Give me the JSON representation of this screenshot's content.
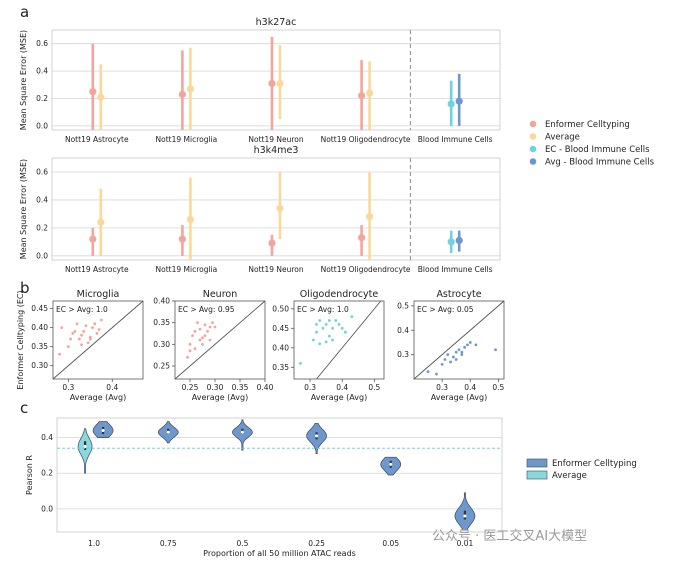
{
  "panel_labels": [
    "a",
    "b",
    "c"
  ],
  "legend_a": [
    {
      "label": "Enformer Celltyping",
      "color": "#f2a59c"
    },
    {
      "label": "Average",
      "color": "#fad89a"
    },
    {
      "label": "EC - Blood Immune Cells",
      "color": "#6fd3dc"
    },
    {
      "label": "Avg - Blood Immune Cells",
      "color": "#6e98cc"
    }
  ],
  "legend_c": [
    {
      "label": "Enformer Celltyping",
      "color": "#6e98cc"
    },
    {
      "label": "Average",
      "color": "#8ad8dc"
    }
  ],
  "watermark": "公众号 · 医工交叉AI大模型",
  "chart_data": [
    {
      "id": "a_top",
      "type": "scatter",
      "subtype": "point-range",
      "title": "h3k27ac",
      "ylabel": "Mean Square Error (MSE)",
      "ylim": [
        -0.03,
        0.7
      ],
      "yticks": [
        "0.0",
        "0.2",
        "0.4",
        "0.6"
      ],
      "categories": [
        "Nott19 Astrocyte",
        "Nott19 Microglia",
        "Nott19 Neuron",
        "Nott19 Oligodendrocyte",
        "Blood Immune Cells"
      ],
      "series": [
        {
          "name": "Enformer Celltyping",
          "color": "#f2a59c",
          "categories": [
            0,
            1,
            2,
            3
          ],
          "center": [
            0.25,
            0.23,
            0.31,
            0.22
          ],
          "low": [
            -0.03,
            -0.03,
            -0.03,
            -0.03
          ],
          "high": [
            0.6,
            0.55,
            0.65,
            0.48
          ]
        },
        {
          "name": "Average",
          "color": "#fad89a",
          "categories": [
            0,
            1,
            2,
            3
          ],
          "center": [
            0.21,
            0.27,
            0.31,
            0.24
          ],
          "low": [
            -0.03,
            -0.03,
            0.05,
            -0.03
          ],
          "high": [
            0.45,
            0.57,
            0.59,
            0.47
          ]
        },
        {
          "name": "EC - Blood Immune Cells",
          "color": "#6fd3dc",
          "categories": [
            4
          ],
          "center": [
            0.16
          ],
          "low": [
            0.0
          ],
          "high": [
            0.33
          ]
        },
        {
          "name": "Avg - Blood Immune Cells",
          "color": "#6e98cc",
          "categories": [
            4
          ],
          "center": [
            0.18
          ],
          "low": [
            0.0
          ],
          "high": [
            0.38
          ]
        }
      ],
      "divider_between": [
        3,
        4
      ],
      "grid": true
    },
    {
      "id": "a_bottom",
      "type": "scatter",
      "subtype": "point-range",
      "title": "h3k4me3",
      "ylabel": "Mean Square Error (MSE)",
      "ylim": [
        -0.03,
        0.7
      ],
      "yticks": [
        "0.0",
        "0.2",
        "0.4",
        "0.6"
      ],
      "categories": [
        "Nott19 Astrocyte",
        "Nott19 Microglia",
        "Nott19 Neuron",
        "Nott19 Oligodendrocyte",
        "Blood Immune Cells"
      ],
      "series": [
        {
          "name": "Enformer Celltyping",
          "color": "#f2a59c",
          "categories": [
            0,
            1,
            2,
            3
          ],
          "center": [
            0.12,
            0.12,
            0.09,
            0.13
          ],
          "low": [
            0.0,
            0.0,
            0.0,
            0.0
          ],
          "high": [
            0.2,
            0.22,
            0.15,
            0.22
          ]
        },
        {
          "name": "Average",
          "color": "#fad89a",
          "categories": [
            0,
            1,
            2,
            3
          ],
          "center": [
            0.24,
            0.26,
            0.34,
            0.28
          ],
          "low": [
            0.0,
            -0.03,
            0.12,
            -0.03
          ],
          "high": [
            0.48,
            0.56,
            0.6,
            0.6
          ]
        },
        {
          "name": "EC - Blood Immune Cells",
          "color": "#6fd3dc",
          "categories": [
            4
          ],
          "center": [
            0.1
          ],
          "low": [
            0.02
          ],
          "high": [
            0.18
          ]
        },
        {
          "name": "Avg - Blood Immune Cells",
          "color": "#6e98cc",
          "categories": [
            4
          ],
          "center": [
            0.11
          ],
          "low": [
            0.03
          ],
          "high": [
            0.18
          ]
        }
      ],
      "divider_between": [
        3,
        4
      ],
      "grid": true
    },
    {
      "id": "b_microglia",
      "type": "scatter",
      "title": "Microglia",
      "annotation": "EC > Avg: 1.0",
      "xlabel": "Average (Avg)",
      "ylabel": "Enformer Celltyping (EC)",
      "xlim": [
        0.265,
        0.47
      ],
      "ylim": [
        0.265,
        0.47
      ],
      "xticks": [
        0.3,
        0.4
      ],
      "xticklabels": [
        "0.3",
        "0.4"
      ],
      "yticks": [
        0.3,
        0.35,
        0.4,
        0.45
      ],
      "yticklabels": [
        "0.30",
        "0.35",
        "0.40",
        "0.45"
      ],
      "color": "#f2a59c",
      "x": [
        0.285,
        0.3,
        0.305,
        0.31,
        0.315,
        0.32,
        0.325,
        0.33,
        0.335,
        0.34,
        0.345,
        0.35,
        0.355,
        0.36,
        0.365,
        0.37,
        0.375,
        0.28,
        0.33,
        0.35
      ],
      "y": [
        0.4,
        0.35,
        0.37,
        0.385,
        0.39,
        0.41,
        0.37,
        0.38,
        0.39,
        0.405,
        0.36,
        0.375,
        0.4,
        0.41,
        0.385,
        0.395,
        0.42,
        0.33,
        0.355,
        0.37
      ],
      "diagonal": true
    },
    {
      "id": "b_neuron",
      "type": "scatter",
      "title": "Neuron",
      "annotation": "EC > Avg: 0.95",
      "xlabel": "Average (Avg)",
      "ylabel": "",
      "xlim": [
        0.22,
        0.4
      ],
      "ylim": [
        0.22,
        0.4
      ],
      "xticks": [
        0.25,
        0.3,
        0.35,
        0.4
      ],
      "xticklabels": [
        "0.25",
        "0.30",
        "0.35",
        "0.40"
      ],
      "yticks": [
        0.25,
        0.3,
        0.35,
        0.4
      ],
      "yticklabels": [
        "0.25",
        "0.30",
        "0.35",
        "0.40"
      ],
      "color": "#f2a59c",
      "x": [
        0.245,
        0.25,
        0.255,
        0.26,
        0.265,
        0.27,
        0.275,
        0.28,
        0.285,
        0.29,
        0.295,
        0.3,
        0.26,
        0.27,
        0.28,
        0.29,
        0.25,
        0.275
      ],
      "y": [
        0.27,
        0.3,
        0.32,
        0.33,
        0.35,
        0.31,
        0.3,
        0.32,
        0.33,
        0.34,
        0.35,
        0.34,
        0.29,
        0.335,
        0.345,
        0.31,
        0.285,
        0.315
      ],
      "diagonal": true
    },
    {
      "id": "b_oligodendrocyte",
      "type": "scatter",
      "title": "Oligodendrocyte",
      "annotation": "EC > Avg: 1.0",
      "xlabel": "Average (Avg)",
      "ylabel": "",
      "xlim": [
        0.25,
        0.53
      ],
      "ylim": [
        0.32,
        0.52
      ],
      "xticks": [
        0.3,
        0.4,
        0.5
      ],
      "xticklabels": [
        "0.3",
        "0.4",
        "0.5"
      ],
      "yticks": [
        0.35,
        0.4,
        0.45,
        0.5
      ],
      "yticklabels": [
        "0.35",
        "0.40",
        "0.45",
        "0.50"
      ],
      "color": "#6fd3dc",
      "x": [
        0.27,
        0.31,
        0.32,
        0.33,
        0.34,
        0.35,
        0.36,
        0.37,
        0.38,
        0.39,
        0.4,
        0.41,
        0.33,
        0.35,
        0.37,
        0.43,
        0.32,
        0.36
      ],
      "y": [
        0.36,
        0.42,
        0.44,
        0.47,
        0.45,
        0.46,
        0.43,
        0.42,
        0.47,
        0.46,
        0.45,
        0.44,
        0.41,
        0.415,
        0.45,
        0.48,
        0.46,
        0.47
      ],
      "diagonal": true
    },
    {
      "id": "b_astrocyte",
      "type": "scatter",
      "title": "Astrocyte",
      "annotation": "EC > Avg: 0.05",
      "xlabel": "Average (Avg)",
      "ylabel": "",
      "xlim": [
        0.2,
        0.52
      ],
      "ylim": [
        0.2,
        0.52
      ],
      "xticks": [
        0.3,
        0.4,
        0.5
      ],
      "xticklabels": [
        "0.3",
        "0.4",
        "0.5"
      ],
      "yticks": [
        0.3,
        0.4,
        0.5
      ],
      "yticklabels": [
        "0.3",
        "0.4",
        "0.5"
      ],
      "color": "#6e98cc",
      "x": [
        0.25,
        0.28,
        0.3,
        0.31,
        0.32,
        0.33,
        0.34,
        0.35,
        0.36,
        0.37,
        0.38,
        0.39,
        0.4,
        0.35,
        0.37,
        0.42,
        0.49
      ],
      "y": [
        0.23,
        0.22,
        0.26,
        0.28,
        0.3,
        0.27,
        0.29,
        0.31,
        0.32,
        0.31,
        0.33,
        0.34,
        0.35,
        0.28,
        0.3,
        0.34,
        0.32
      ],
      "diagonal": true
    },
    {
      "id": "c",
      "type": "violin",
      "xlabel": "Proportion of all 50 million ATAC reads",
      "ylabel": "Pearson R",
      "ylim": [
        -0.13,
        0.51
      ],
      "yticks": [
        0.0,
        0.2,
        0.4
      ],
      "yticklabels": [
        "0.0",
        "0.2",
        "0.4"
      ],
      "categories": [
        "1.0",
        "0.75",
        "0.5",
        "0.25",
        "0.05",
        "0.01"
      ],
      "series": [
        {
          "name": "Average",
          "color": "#8ad8dc",
          "categories": [
            0
          ],
          "median": [
            0.35
          ],
          "q1": [
            0.33
          ],
          "q3": [
            0.38
          ],
          "min": [
            0.2
          ],
          "max": [
            0.45
          ]
        },
        {
          "name": "Enformer Celltyping",
          "color": "#6e98cc",
          "categories": [
            0,
            1,
            2,
            3,
            4,
            5
          ],
          "median": [
            0.44,
            0.43,
            0.43,
            0.41,
            0.25,
            -0.04
          ],
          "q1": [
            0.42,
            0.42,
            0.42,
            0.39,
            0.23,
            -0.06
          ],
          "q3": [
            0.46,
            0.45,
            0.45,
            0.43,
            0.27,
            -0.01
          ],
          "min": [
            0.4,
            0.37,
            0.33,
            0.31,
            0.19,
            -0.12
          ],
          "max": [
            0.49,
            0.49,
            0.5,
            0.48,
            0.29,
            0.09
          ]
        }
      ],
      "reference_line": 0.34,
      "grid": true
    }
  ]
}
